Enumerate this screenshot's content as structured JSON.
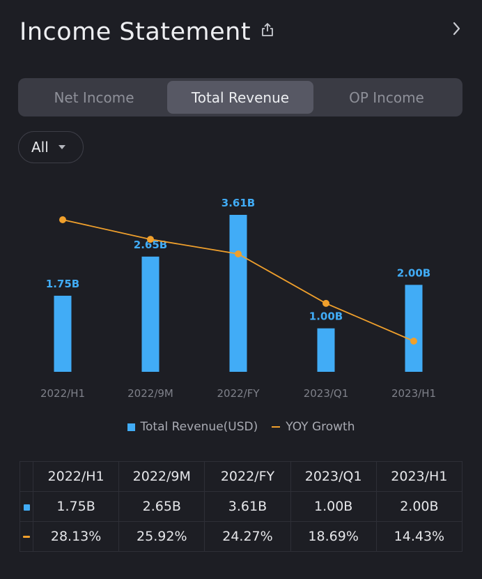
{
  "header": {
    "title": "Income Statement"
  },
  "tabs": [
    {
      "label": "Net Income",
      "active": false
    },
    {
      "label": "Total Revenue",
      "active": true
    },
    {
      "label": "OP Income",
      "active": false
    }
  ],
  "filter": {
    "selected": "All"
  },
  "legend": {
    "bar": "Total Revenue(USD)",
    "line": "YOY Growth"
  },
  "colors": {
    "bar": "#41acf6",
    "line": "#f0a02c",
    "growth_text": "#32bf66"
  },
  "chart_data": {
    "type": "bar",
    "title": "",
    "categories": [
      "2022/H1",
      "2022/9M",
      "2022/FY",
      "2023/Q1",
      "2023/H1"
    ],
    "series": [
      {
        "name": "Total Revenue(USD)",
        "type": "bar",
        "unit": "B",
        "values": [
          1.75,
          2.65,
          3.61,
          1.0,
          2.0
        ],
        "labels": [
          "1.75B",
          "2.65B",
          "3.61B",
          "1.00B",
          "2.00B"
        ]
      },
      {
        "name": "YOY Growth",
        "type": "line",
        "unit": "%",
        "values": [
          28.13,
          25.92,
          24.27,
          18.69,
          14.43
        ]
      }
    ],
    "ylim": [
      0,
      3.61
    ],
    "grid": false,
    "legend_position": "bottom"
  },
  "table": {
    "columns": [
      "2022/H1",
      "2022/9M",
      "2022/FY",
      "2023/Q1",
      "2023/H1"
    ],
    "rows": [
      {
        "key": "revenue",
        "values": [
          "1.75B",
          "2.65B",
          "3.61B",
          "1.00B",
          "2.00B"
        ]
      },
      {
        "key": "growth",
        "values": [
          "28.13%",
          "25.92%",
          "24.27%",
          "18.69%",
          "14.43%"
        ]
      }
    ]
  }
}
